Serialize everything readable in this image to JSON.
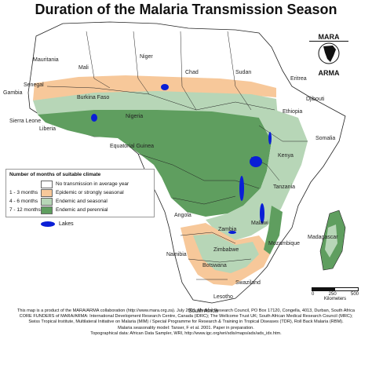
{
  "title": "Duration of the Malaria Transmission Season",
  "logo": {
    "line1": "MARA",
    "line2": "ARMA"
  },
  "colors": {
    "none": "#ffffff",
    "epidemic": "#f7c89a",
    "seasonal": "#b7d6b7",
    "perennial": "#5f9e5f",
    "lakes": "#0a1fd6",
    "border": "#222222"
  },
  "legend": {
    "heading": "Number of months of suitable climate",
    "rows": [
      {
        "range": "",
        "label": "No transmission in average year"
      },
      {
        "range": "1 - 3 months",
        "label": "Epidemic or strongly seasonal"
      },
      {
        "range": "4 - 6 months",
        "label": "Endemic and seasonal"
      },
      {
        "range": "7 - 12 months",
        "label": "Endemic and perennial"
      }
    ]
  },
  "lakes_label": "Lakes",
  "countries": [
    "Mauritania",
    "Mali",
    "Niger",
    "Chad",
    "Sudan",
    "Eritrea",
    "Senegal",
    "Gambia",
    "Burkina Faso",
    "Djibouti",
    "Nigeria",
    "Ethiopia",
    "Sierra Leone",
    "Liberia",
    "Somalia",
    "Equatorial Guinea",
    "Kenya",
    "Tanzania",
    "Angola",
    "Malawi",
    "Zambia",
    "Mozambique",
    "Zimbabwe",
    "Madagascar",
    "Namibia",
    "Botswana",
    "Swaziland",
    "Lesotho",
    "South Africa"
  ],
  "scale": {
    "ticks": [
      "0",
      "250",
      "500"
    ],
    "unit": "Kilometers"
  },
  "footer": [
    "This map is a product of the MARA/ARMA collaboration (http://www.mara.org.za). July 2001, Medical Research Council, PO Box 17120, Congella, 4013, Durban, South Africa",
    "CORE FUNDERS of MARA/ARMA: International Development Research Centre, Canada (IDRC); The Wellcome Trust UK; South African Medical Research Council (MRC);",
    "Swiss Tropical Institute, Multilateral Initiative on Malaria (MIM) / Special Programme for Research & Training in Tropical Diseases (TDR), Roll Back Malaria (RBM).",
    "Malaria seasonality model: Tanser, F et al. 2001. Paper in preparation.",
    "Topographical data: African Data Sampler, WRI, http://www.igc.org/wri/sdis/maps/ads/ads_idx.htm."
  ]
}
